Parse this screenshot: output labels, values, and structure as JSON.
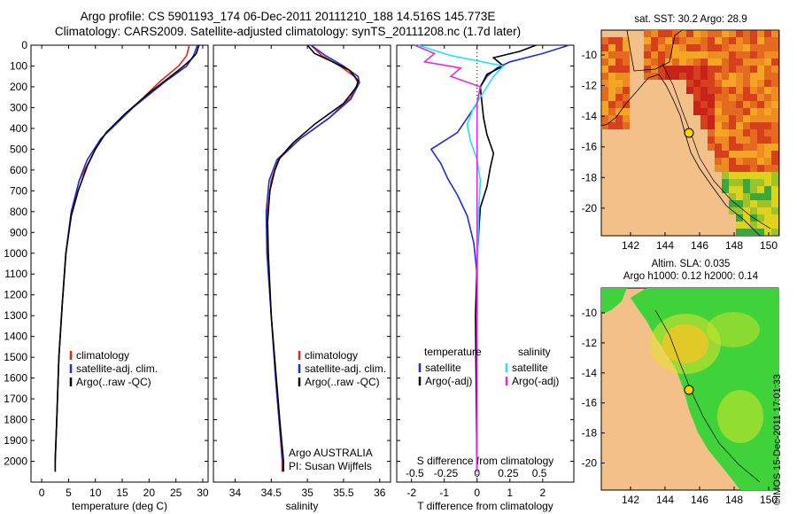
{
  "header": {
    "line1": "Argo profile: CS 5901193_174 06-Dec-2011 20111210_188 14.516S 145.773E",
    "line2": "Climatology: CARS2009. Satellite-adjusted climatology: synTS_20111208.nc (1.7d later)"
  },
  "colors": {
    "climatology": "#e8211d",
    "satellite": "#1f2fd0",
    "argo": "#000000",
    "sat_salinity": "#22e3ee",
    "argo_salinity": "#e02ae0"
  },
  "chart_data": [
    {
      "id": "temperature",
      "type": "line",
      "xlabel": "temperature (deg C)",
      "ylabel": "",
      "xlim": [
        -2,
        31
      ],
      "ylim": [
        2100,
        0
      ],
      "xticks": [
        0,
        5,
        10,
        15,
        20,
        25,
        30
      ],
      "yticks": [
        0,
        100,
        200,
        300,
        400,
        500,
        600,
        700,
        800,
        900,
        1000,
        1100,
        1200,
        1300,
        1400,
        1500,
        1600,
        1700,
        1800,
        1900,
        2000
      ],
      "legend": {
        "placement": "lower-middle",
        "entries": [
          "climatology",
          "satellite-adj. clim.",
          "Argo(..raw -QC)"
        ]
      },
      "series": [
        {
          "name": "climatology",
          "color": "climatology",
          "points": [
            [
              27.5,
              0
            ],
            [
              27,
              50
            ],
            [
              25.5,
              100
            ],
            [
              22,
              175
            ],
            [
              17,
              300
            ],
            [
              11,
              450
            ],
            [
              9,
              550
            ],
            [
              7,
              650
            ],
            [
              5.5,
              800
            ],
            [
              4.5,
              1000
            ],
            [
              3.8,
              1250
            ],
            [
              3.2,
              1500
            ],
            [
              2.8,
              1800
            ],
            [
              2.5,
              2000
            ],
            [
              2.5,
              2050
            ]
          ]
        },
        {
          "name": "satellite-adj. clim.",
          "color": "satellite",
          "points": [
            [
              29,
              0
            ],
            [
              28.3,
              50
            ],
            [
              27,
              100
            ],
            [
              23,
              175
            ],
            [
              17,
              300
            ],
            [
              11,
              450
            ],
            [
              8.5,
              550
            ],
            [
              7,
              650
            ],
            [
              5.5,
              800
            ],
            [
              4.5,
              1000
            ],
            [
              3.8,
              1250
            ],
            [
              3.2,
              1500
            ],
            [
              2.8,
              1800
            ],
            [
              2.5,
              2000
            ],
            [
              2.5,
              2050
            ]
          ]
        },
        {
          "name": "Argo(..raw -QC)",
          "color": "argo",
          "points": [
            [
              29.3,
              0
            ],
            [
              28.8,
              40
            ],
            [
              27.8,
              70
            ],
            [
              26,
              110
            ],
            [
              24,
              150
            ],
            [
              20,
              230
            ],
            [
              15.5,
              330
            ],
            [
              12,
              420
            ],
            [
              10,
              500
            ],
            [
              8.5,
              580
            ],
            [
              6.8,
              700
            ],
            [
              5.5,
              820
            ],
            [
              4.5,
              1000
            ],
            [
              3.8,
              1250
            ],
            [
              3.2,
              1500
            ],
            [
              2.8,
              1800
            ],
            [
              2.5,
              2000
            ],
            [
              2.5,
              2050
            ]
          ]
        }
      ]
    },
    {
      "id": "salinity",
      "type": "line",
      "xlabel": "salinity",
      "ylabel": "",
      "xlim": [
        33.7,
        36.15
      ],
      "ylim": [
        2100,
        0
      ],
      "xticks": [
        34,
        34.5,
        35,
        35.5,
        36
      ],
      "legend": {
        "placement": "lower-middle",
        "entries": [
          "climatology",
          "satellite-adj. clim.",
          "Argo(..raw -QC)"
        ]
      },
      "annotations": [
        "Argo AUSTRALIA",
        "PI: Susan Wijffels"
      ],
      "series": [
        {
          "name": "climatology",
          "color": "climatology",
          "points": [
            [
              35.05,
              0
            ],
            [
              35.2,
              50
            ],
            [
              35.45,
              100
            ],
            [
              35.65,
              150
            ],
            [
              35.7,
              180
            ],
            [
              35.6,
              250
            ],
            [
              35.3,
              350
            ],
            [
              34.9,
              450
            ],
            [
              34.6,
              550
            ],
            [
              34.5,
              650
            ],
            [
              34.45,
              800
            ],
            [
              34.45,
              1000
            ],
            [
              34.5,
              1300
            ],
            [
              34.56,
              1600
            ],
            [
              34.62,
              1850
            ],
            [
              34.65,
              2000
            ],
            [
              34.65,
              2050
            ]
          ]
        },
        {
          "name": "satellite-adj. clim.",
          "color": "satellite",
          "points": [
            [
              35.05,
              0
            ],
            [
              35.25,
              50
            ],
            [
              35.5,
              100
            ],
            [
              35.7,
              150
            ],
            [
              35.72,
              180
            ],
            [
              35.6,
              260
            ],
            [
              35.3,
              350
            ],
            [
              34.9,
              450
            ],
            [
              34.58,
              550
            ],
            [
              34.47,
              650
            ],
            [
              34.43,
              800
            ],
            [
              34.44,
              1000
            ],
            [
              34.5,
              1300
            ],
            [
              34.56,
              1600
            ],
            [
              34.62,
              1850
            ],
            [
              34.66,
              2000
            ],
            [
              34.66,
              2050
            ]
          ]
        },
        {
          "name": "Argo(..raw -QC)",
          "color": "argo",
          "points": [
            [
              35.0,
              0
            ],
            [
              35.1,
              40
            ],
            [
              35.35,
              80
            ],
            [
              35.58,
              120
            ],
            [
              35.7,
              170
            ],
            [
              35.68,
              200
            ],
            [
              35.5,
              280
            ],
            [
              35.1,
              380
            ],
            [
              34.8,
              470
            ],
            [
              34.62,
              540
            ],
            [
              34.55,
              600
            ],
            [
              34.48,
              700
            ],
            [
              34.45,
              850
            ],
            [
              34.46,
              1000
            ],
            [
              34.5,
              1300
            ],
            [
              34.57,
              1600
            ],
            [
              34.63,
              1850
            ],
            [
              34.67,
              2000
            ],
            [
              34.67,
              2050
            ]
          ]
        }
      ]
    },
    {
      "id": "difference",
      "type": "line",
      "xlabel": "T difference from climatology",
      "ylabel": "",
      "top_xlabel": "S difference from climatology",
      "xlim": [
        -2.45,
        2.95
      ],
      "ylim": [
        2100,
        0
      ],
      "xticks": [
        -2,
        -1,
        0,
        1,
        2
      ],
      "s_xticks": [
        {
          "label": "-0.5",
          "t": -1.9
        },
        {
          "label": "-0.25",
          "t": -0.95
        },
        {
          "label": "0",
          "t": 0
        },
        {
          "label": "0.25",
          "t": 0.95
        },
        {
          "label": "0.5",
          "t": 1.9
        }
      ],
      "legend": {
        "placement": "lower-middle",
        "groups": [
          {
            "title": "temperature",
            "entries": [
              "satellite",
              "Argo(-adj)"
            ]
          },
          {
            "title": "salinity",
            "entries": [
              "satellite",
              "Argo(-adj)"
            ]
          }
        ]
      },
      "series": [
        {
          "name": "satellite",
          "group": "temperature",
          "color": "satellite",
          "points": [
            [
              2.8,
              0
            ],
            [
              2.0,
              40
            ],
            [
              1.0,
              80
            ],
            [
              0.6,
              110
            ],
            [
              0.3,
              150
            ],
            [
              0.1,
              200
            ],
            [
              0,
              280
            ],
            [
              -0.3,
              350
            ],
            [
              -0.6,
              420
            ],
            [
              -1.4,
              500
            ],
            [
              -1.1,
              570
            ],
            [
              -0.9,
              640
            ],
            [
              -0.6,
              720
            ],
            [
              -0.3,
              820
            ],
            [
              -0.1,
              950
            ],
            [
              0,
              1100
            ],
            [
              0,
              1500
            ],
            [
              0,
              2050
            ]
          ]
        },
        {
          "name": "Argo(-adj)",
          "group": "temperature",
          "color": "argo",
          "points": [
            [
              1.8,
              0
            ],
            [
              1.3,
              30
            ],
            [
              0.5,
              60
            ],
            [
              0.8,
              100
            ],
            [
              0.3,
              140
            ],
            [
              0.1,
              200
            ],
            [
              0.15,
              280
            ],
            [
              0.2,
              350
            ],
            [
              0.3,
              430
            ],
            [
              0.5,
              520
            ],
            [
              0.4,
              590
            ],
            [
              0.3,
              680
            ],
            [
              0.1,
              780
            ],
            [
              0.05,
              900
            ],
            [
              0,
              1050
            ],
            [
              -0.05,
              1300
            ],
            [
              0,
              2050
            ]
          ]
        },
        {
          "name": "satellite",
          "group": "salinity",
          "color": "sat_salinity",
          "points": [
            [
              -1.8,
              0
            ],
            [
              -0.8,
              50
            ],
            [
              0.8,
              100
            ],
            [
              0.5,
              150
            ],
            [
              0.3,
              200
            ],
            [
              -0.1,
              300
            ],
            [
              -0.3,
              380
            ],
            [
              -0.2,
              460
            ],
            [
              0.0,
              550
            ],
            [
              0.1,
              650
            ],
            [
              0.05,
              800
            ],
            [
              0.02,
              1000
            ],
            [
              0,
              1400
            ],
            [
              0,
              2050
            ]
          ]
        },
        {
          "name": "Argo(-adj)",
          "group": "salinity",
          "color": "argo_salinity",
          "points": [
            [
              -1.9,
              0
            ],
            [
              -1.3,
              40
            ],
            [
              -1.6,
              80
            ],
            [
              -0.5,
              110
            ],
            [
              -0.8,
              150
            ],
            [
              0.1,
              200
            ],
            [
              0,
              280
            ],
            [
              0,
              400
            ],
            [
              0,
              600
            ],
            [
              0,
              1000
            ],
            [
              0,
              1400
            ],
            [
              0,
              2050
            ]
          ]
        }
      ]
    }
  ],
  "maps": {
    "sst": {
      "title": "sat. SST: 30.2  Argo: 28.9",
      "xticks": [
        "142",
        "144",
        "146",
        "148",
        "150"
      ],
      "yticks": [
        "-10",
        "-12",
        "-14",
        "-16",
        "-18",
        "-20"
      ]
    },
    "sla": {
      "title1": "Altim. SLA: 0.035",
      "title2": "Argo h1000: 0.12  h2000: 0.14",
      "xticks": [
        "142",
        "144",
        "146",
        "148",
        "150"
      ],
      "yticks": [
        "-10",
        "-12",
        "-14",
        "-16",
        "-18",
        "-20"
      ]
    }
  },
  "footer": {
    "stamp": "©IMOS 15-Dec-2011 17:01:33"
  }
}
